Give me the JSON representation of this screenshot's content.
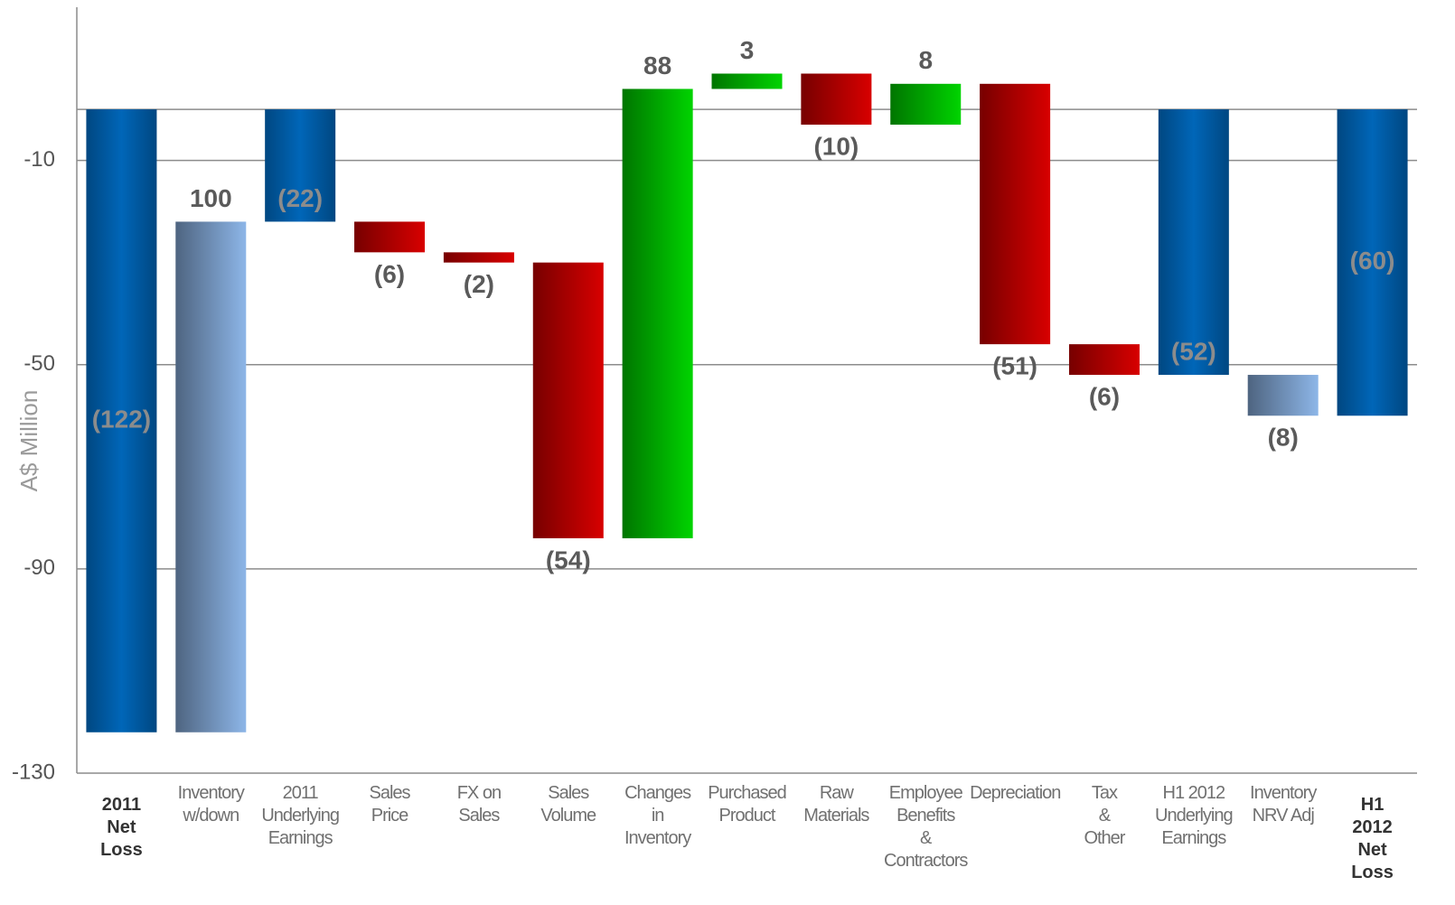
{
  "chart_data": {
    "type": "waterfall",
    "y_label": "A$ Million",
    "categories": [
      "2011\nNet\nLoss",
      "Inventory\nw/down",
      "2011\nUnderlying\nEarnings",
      "Sales\nPrice",
      "FX on\nSales",
      "Sales\nVolume",
      "Changes\nin\nInventory",
      "Purchased\nProduct",
      "Raw\nMaterials",
      "Employee\nBenefits\n&\nContractors",
      "Depreciation",
      "Tax\n&\nOther",
      "H1 2012\nUnderlying\nEarnings",
      "Inventory\nNRV Adj",
      "H1\n2012\nNet\nLoss"
    ],
    "category_bold": [
      true,
      false,
      false,
      false,
      false,
      false,
      false,
      false,
      false,
      false,
      false,
      false,
      false,
      false,
      true
    ],
    "measure": [
      "total",
      "relative",
      "total",
      "relative",
      "relative",
      "relative",
      "relative",
      "relative",
      "relative",
      "relative",
      "relative",
      "relative",
      "total",
      "relative",
      "total"
    ],
    "values": [
      -122,
      100,
      -22,
      -6,
      -2,
      -54,
      88,
      3,
      -10,
      8,
      -51,
      -6,
      -52,
      -8,
      -60
    ],
    "value_labels": [
      "(122)",
      "100",
      "(22)",
      "(6)",
      "(2)",
      "(54)",
      "88",
      "3",
      "(10)",
      "8",
      "(51)",
      "(6)",
      "(52)",
      "(8)",
      "(60)"
    ],
    "colors": [
      "#0066b8",
      "#8db6e8",
      "#0066b8",
      "#d80000",
      "#d80000",
      "#d80000",
      "#00d400",
      "#00d400",
      "#d80000",
      "#00d400",
      "#d80000",
      "#d80000",
      "#0066b8",
      "#8db6e8",
      "#0066b8"
    ],
    "ylim": [
      -130,
      20
    ],
    "yticks": [
      -10,
      -50,
      -90,
      -130
    ],
    "grid": true
  }
}
